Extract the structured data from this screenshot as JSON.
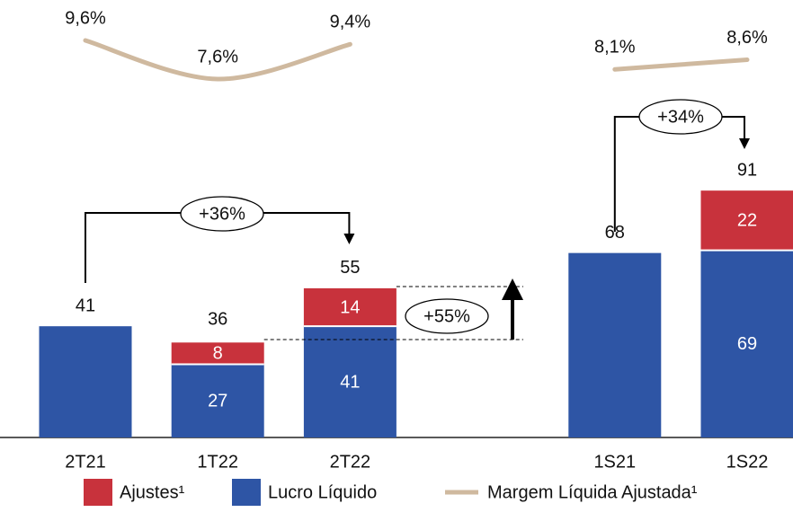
{
  "chart_data": {
    "type": "stacked-bar-line",
    "categories": [
      "2T21",
      "1T22",
      "2T22",
      null,
      "1S21",
      "1S22"
    ],
    "series": [
      {
        "name": "Lucro Líquido",
        "color": "#2e55a5",
        "values": [
          41,
          27,
          41,
          null,
          68,
          69
        ]
      },
      {
        "name": "Ajustes¹",
        "color": "#c8323c",
        "values": [
          null,
          8,
          14,
          null,
          null,
          22
        ]
      }
    ],
    "totals": [
      41,
      36,
      55,
      null,
      68,
      91
    ],
    "line": {
      "name": "Margem Líquida Ajustada¹",
      "color": "#cfb99f",
      "values": [
        9.6,
        7.6,
        9.4,
        null,
        8.1,
        8.6
      ],
      "value_labels": [
        "9,6%",
        "7,6%",
        "9,4%",
        null,
        "8,1%",
        "8,6%"
      ]
    },
    "annotations": [
      "+36%",
      "+55%",
      "+34%"
    ]
  }
}
